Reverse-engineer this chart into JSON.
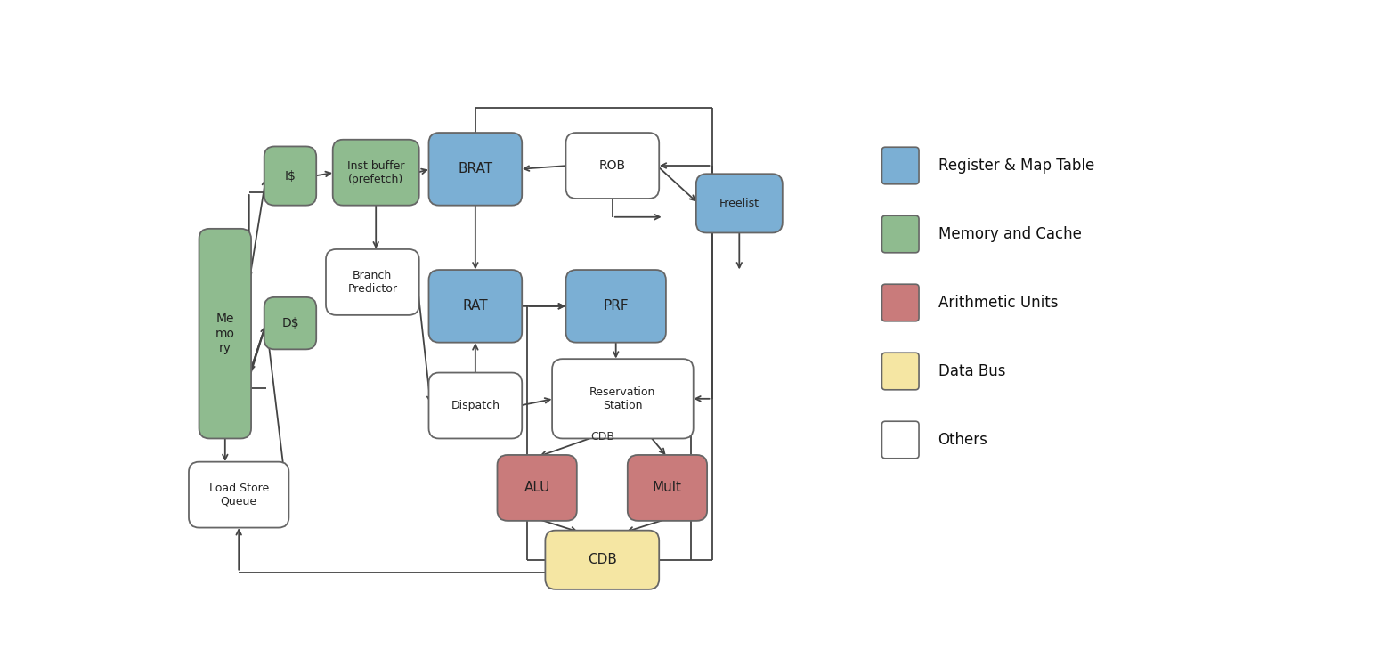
{
  "bg_color": "#ffffff",
  "colors": {
    "blue": "#7bafd4",
    "green": "#8fbb8f",
    "red": "#c97b7b",
    "yellow": "#f5e6a3",
    "white": "#ffffff"
  },
  "legend_items": [
    {
      "color": "#7bafd4",
      "label": "Register & Map Table"
    },
    {
      "color": "#8fbb8f",
      "label": "Memory and Cache"
    },
    {
      "color": "#c97b7b",
      "label": "Arithmetic Units"
    },
    {
      "color": "#f5e6a3",
      "label": "Data Bus"
    },
    {
      "color": "#ffffff",
      "label": "Others"
    }
  ]
}
